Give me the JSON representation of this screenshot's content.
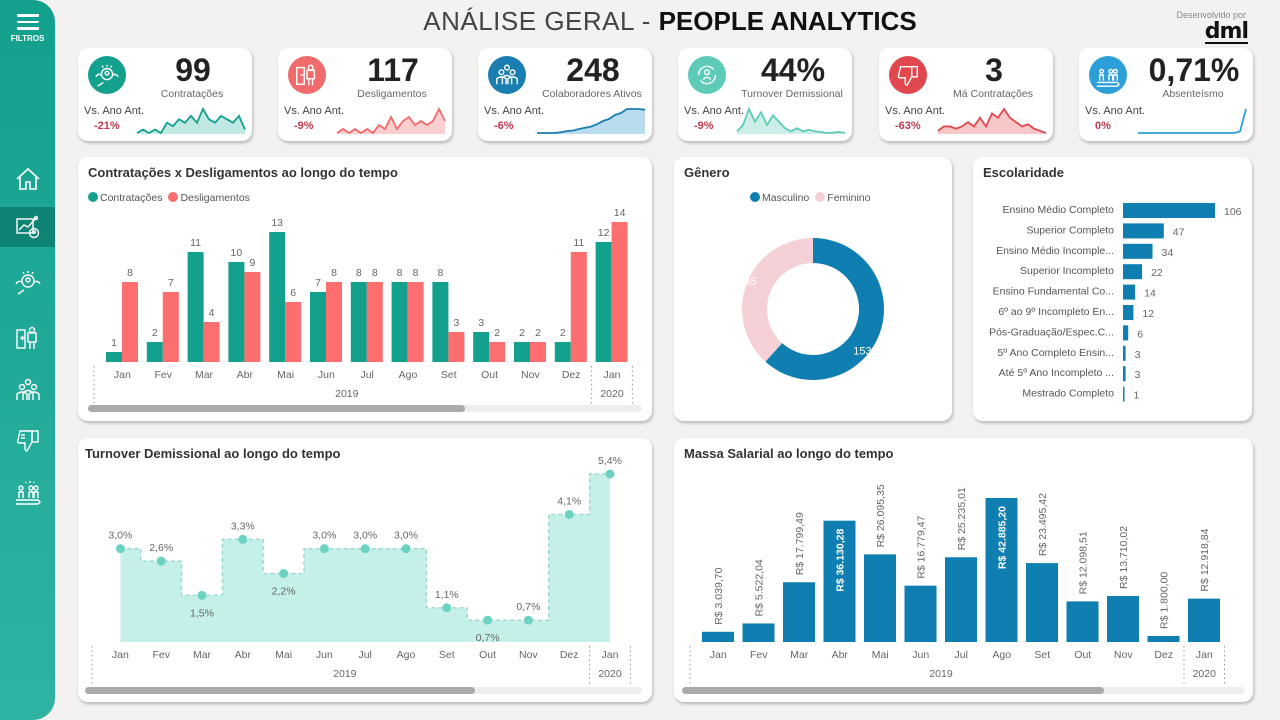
{
  "header": {
    "title_light": "ANÁLISE GERAL - ",
    "title_bold": "PEOPLE ANALYTICS",
    "developed_by": "Desenvolvido por",
    "brand": "dml"
  },
  "sidebar": {
    "menu_label": "FILTROS",
    "items": [
      {
        "name": "home",
        "icon": "home-icon"
      },
      {
        "name": "overview",
        "icon": "dashboard-chart-icon",
        "active": true
      },
      {
        "name": "recruitment",
        "icon": "recruit-search-icon"
      },
      {
        "name": "terminations",
        "icon": "exit-door-icon"
      },
      {
        "name": "employees",
        "icon": "team-group-icon"
      },
      {
        "name": "bad-hires",
        "icon": "thumbs-down-icon"
      },
      {
        "name": "absenteeism",
        "icon": "people-progress-icon"
      }
    ]
  },
  "kpis": [
    {
      "value": "99",
      "label": "Contratações",
      "vs": "Vs. Ano Ant.",
      "delta": "-21%",
      "color": "#13a08d",
      "fill": "#bfe9e2",
      "icon": "recruit-search-icon",
      "spark": [
        2,
        3,
        2,
        3,
        2,
        5,
        4,
        6,
        5,
        7,
        5,
        9,
        6,
        5,
        7,
        6,
        5,
        7,
        3
      ]
    },
    {
      "value": "117",
      "label": "Desligamentos",
      "vs": "Vs. Ano Ant.",
      "delta": "-9%",
      "color": "#f06b6b",
      "fill": "#f9cfcf",
      "icon": "exit-door-icon",
      "spark": [
        2,
        3,
        2,
        3,
        2,
        3,
        2,
        4,
        3,
        6,
        3,
        5,
        6,
        4,
        5,
        4,
        5,
        8,
        5
      ]
    },
    {
      "value": "248",
      "label": "Colaboradores Ativos",
      "vs": "Vs. Ano Ant.",
      "delta": "-6%",
      "color": "#1a7fb0",
      "fill": "#b9dcef",
      "icon": "team-group-icon",
      "spark": [
        1,
        1,
        1,
        1,
        1.2,
        1.5,
        1.6,
        2,
        2.3,
        2.6,
        3.2,
        4,
        4.5,
        5.5,
        6,
        7,
        7,
        7,
        6.8
      ]
    },
    {
      "value": "44%",
      "label": "Turnover Demissional",
      "vs": "Vs. Ano Ant.",
      "delta": "-9%",
      "color": "#5ecbb9",
      "fill": "#cdeee8",
      "icon": "turnover-cycle-icon",
      "spark": [
        2,
        4,
        9,
        5,
        8,
        4,
        7,
        5,
        3,
        2,
        3,
        2,
        2.5,
        2,
        1.8,
        1.5,
        1.6,
        1.8,
        1.5
      ]
    },
    {
      "value": "3",
      "label": "Má Contratações",
      "vs": "Vs. Ano Ant.",
      "delta": "-63%",
      "color": "#e0484e",
      "fill": "#f8c8c8",
      "icon": "thumbs-down-icon",
      "spark": [
        2,
        3,
        3,
        2.5,
        3,
        4,
        3,
        5,
        3,
        6,
        5,
        7,
        5,
        4,
        3,
        3.5,
        2.5,
        2,
        1.5
      ]
    },
    {
      "value": "0,71%",
      "label": "Absenteísmo",
      "vs": "Vs. Ano Ant.",
      "delta": "0%",
      "color": "#2d9fd8",
      "fill": "none",
      "icon": "people-progress-icon",
      "spark": [
        1,
        1,
        1,
        1,
        1,
        1,
        1,
        1,
        1,
        1,
        1,
        1,
        1,
        1,
        1,
        1,
        1,
        1.3,
        6
      ]
    }
  ],
  "chart_data": [
    {
      "type": "bar",
      "title": "Contratações x Desligamentos ao longo do tempo",
      "categories": [
        "Jan",
        "Fev",
        "Mar",
        "Abr",
        "Mai",
        "Jun",
        "Jul",
        "Ago",
        "Set",
        "Out",
        "Nov",
        "Dez",
        "Jan"
      ],
      "groups": [
        {
          "label": "2019",
          "span": 12
        },
        {
          "label": "2020",
          "span": 1
        }
      ],
      "series": [
        {
          "name": "Contratações",
          "color": "#13a08d",
          "values": [
            1,
            2,
            11,
            10,
            13,
            7,
            8,
            8,
            8,
            3,
            2,
            2,
            12
          ]
        },
        {
          "name": "Desligamentos",
          "color": "#fd6f6f",
          "values": [
            8,
            7,
            4,
            9,
            6,
            8,
            8,
            8,
            3,
            2,
            2,
            11,
            14
          ]
        }
      ],
      "ylim": [
        0,
        14
      ],
      "legend": "top-left",
      "scroll_fraction": 0.68
    },
    {
      "type": "pie",
      "title": "Gênero",
      "donut": true,
      "series": [
        {
          "name": "Masculino",
          "value": 153,
          "color": "#0e7fb0"
        },
        {
          "name": "Feminino",
          "value": 95,
          "color": "#f5d0d6"
        }
      ],
      "legend": "top-center"
    },
    {
      "type": "bar",
      "orientation": "horizontal",
      "title": "Escolaridade",
      "color": "#0e7fb0",
      "categories": [
        "Ensino Médio Completo",
        "Superior Completo",
        "Ensino Médio Incomple...",
        "Superior Incompleto",
        "Ensino Fundamental Co...",
        "6º ao 9º Incompleto En...",
        "Pós-Graduação/Espec.C...",
        "5º Ano Completo Ensin...",
        "Até 5º Ano Incompleto ...",
        "Mestrado Completo"
      ],
      "values": [
        106,
        47,
        34,
        22,
        14,
        12,
        6,
        3,
        3,
        1
      ]
    },
    {
      "type": "area",
      "step": true,
      "title": "Turnover Demissional ao longo do tempo",
      "color": "#6cd3c3",
      "fill": "#c5efe9",
      "categories": [
        "Jan",
        "Fev",
        "Mar",
        "Abr",
        "Mai",
        "Jun",
        "Jul",
        "Ago",
        "Set",
        "Out",
        "Nov",
        "Dez",
        "Jan"
      ],
      "groups": [
        {
          "label": "2019",
          "span": 12
        },
        {
          "label": "2020",
          "span": 1
        }
      ],
      "values": [
        3.0,
        2.6,
        1.5,
        3.3,
        2.2,
        3.0,
        3.0,
        3.0,
        1.1,
        0.7,
        0.7,
        4.1,
        5.4
      ],
      "labels": [
        "3,0%",
        "2,6%",
        "1,5%",
        "3,3%",
        "2,2%",
        "3,0%",
        "3,0%",
        "3,0%",
        "1,1%",
        "0,7%",
        "0,7%",
        "4,1%",
        "5,4%"
      ],
      "label_below": [
        false,
        false,
        true,
        false,
        true,
        false,
        false,
        false,
        false,
        true,
        false,
        false,
        false
      ],
      "ylim": [
        0,
        5.4
      ],
      "scroll_fraction": 0.7
    },
    {
      "type": "bar",
      "title": "Massa Salarial ao longo do tempo",
      "color": "#0e7fb0",
      "categories": [
        "Jan",
        "Fev",
        "Mar",
        "Abr",
        "Mai",
        "Jun",
        "Jul",
        "Ago",
        "Set",
        "Out",
        "Nov",
        "Dez",
        "Jan"
      ],
      "groups": [
        {
          "label": "2019",
          "span": 12
        },
        {
          "label": "2020",
          "span": 1
        }
      ],
      "values": [
        3039.7,
        5522.04,
        17799.49,
        36130.28,
        26095.35,
        16779.47,
        25235.01,
        42885.2,
        23495.42,
        12098.51,
        13710.02,
        1800.0,
        12918.84
      ],
      "labels": [
        "R$ 3.039,70",
        "R$ 5.522,04",
        "R$ 17.799,49",
        "R$ 36.130,28",
        "R$ 26.095,35",
        "R$ 16.779,47",
        "R$ 25.235,01",
        "R$ 42.885,20",
        "R$ 23.495,42",
        "R$ 12.098,51",
        "R$ 13.710,02",
        "R$ 1.800,00",
        "R$ 12.918,84"
      ],
      "label_inside": [
        false,
        false,
        false,
        true,
        false,
        false,
        false,
        true,
        false,
        false,
        false,
        false,
        false
      ],
      "ylim": [
        0,
        42885.2
      ],
      "scroll_fraction": 0.75
    }
  ]
}
